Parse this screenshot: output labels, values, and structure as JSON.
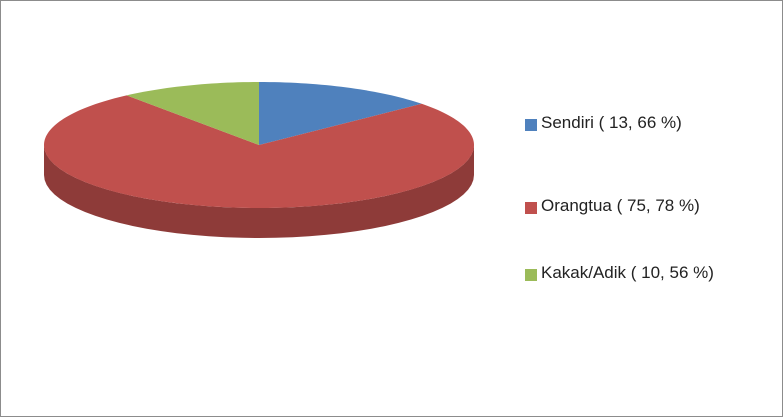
{
  "chart_data": {
    "type": "pie3d",
    "categories": [
      "Sendiri ( 13, 66 %)",
      "Orangtua ( 75, 78 %)",
      "Kakak/Adik ( 10, 56 %)"
    ],
    "values": [
      13.66,
      75.78,
      10.56
    ],
    "colors": [
      "#4f81bd",
      "#c0504d",
      "#9bbb59"
    ],
    "side_colors": [
      "#3b6290",
      "#8e3b39",
      "#748c42"
    ],
    "legend": "right"
  }
}
